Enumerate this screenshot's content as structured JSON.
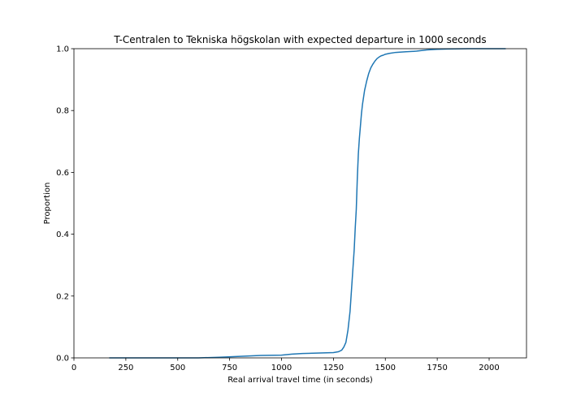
{
  "chart_data": {
    "type": "line",
    "title": "T-Centralen to Tekniska högskolan with expected departure in 1000 seconds",
    "xlabel": "Real arrival travel time (in seconds)",
    "ylabel": "Proportion",
    "xlim": [
      0,
      2180
    ],
    "ylim": [
      0.0,
      1.0
    ],
    "x_ticks": [
      0,
      250,
      500,
      750,
      1000,
      1250,
      1500,
      1750,
      2000
    ],
    "y_ticks": [
      0.0,
      0.2,
      0.4,
      0.6,
      0.8,
      1.0
    ],
    "x_tick_labels": [
      "0",
      "250",
      "500",
      "750",
      "1000",
      "1250",
      "1500",
      "1750",
      "2000"
    ],
    "y_tick_labels": [
      "0.0",
      "0.2",
      "0.4",
      "0.6",
      "0.8",
      "1.0"
    ],
    "grid": false,
    "line_color": "#1f77b4",
    "series": [
      {
        "x": [
          170,
          400,
          600,
          700,
          800,
          900,
          1000,
          1050,
          1100,
          1150,
          1200,
          1250,
          1275,
          1290,
          1300,
          1310,
          1320,
          1330,
          1340,
          1350,
          1355,
          1360,
          1365,
          1370,
          1375,
          1380,
          1385,
          1390,
          1400,
          1410,
          1420,
          1430,
          1440,
          1450,
          1460,
          1470,
          1480,
          1490,
          1500,
          1520,
          1550,
          1600,
          1650,
          1700,
          1750,
          1800,
          1900,
          2000,
          2080
        ],
        "y": [
          0.0,
          0.0,
          0.0,
          0.002,
          0.005,
          0.008,
          0.009,
          0.012,
          0.014,
          0.015,
          0.016,
          0.017,
          0.02,
          0.025,
          0.035,
          0.05,
          0.09,
          0.15,
          0.25,
          0.35,
          0.42,
          0.48,
          0.58,
          0.66,
          0.71,
          0.75,
          0.79,
          0.82,
          0.865,
          0.895,
          0.92,
          0.938,
          0.95,
          0.96,
          0.968,
          0.973,
          0.977,
          0.979,
          0.982,
          0.985,
          0.988,
          0.99,
          0.992,
          0.996,
          0.998,
          0.999,
          1.0,
          1.0,
          1.0
        ]
      }
    ]
  }
}
